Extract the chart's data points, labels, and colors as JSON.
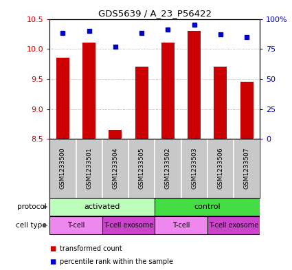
{
  "title": "GDS5639 / A_23_P56422",
  "samples": [
    "GSM1233500",
    "GSM1233501",
    "GSM1233504",
    "GSM1233505",
    "GSM1233502",
    "GSM1233503",
    "GSM1233506",
    "GSM1233507"
  ],
  "transformed_counts": [
    9.85,
    10.1,
    8.65,
    9.7,
    10.1,
    10.3,
    9.7,
    9.45
  ],
  "percentile_ranks": [
    88,
    90,
    77,
    88,
    91,
    95,
    87,
    85
  ],
  "ylim": [
    8.5,
    10.5
  ],
  "yticks": [
    8.5,
    9.0,
    9.5,
    10.0,
    10.5
  ],
  "right_yticks": [
    0,
    25,
    50,
    75,
    100
  ],
  "right_ylim": [
    0,
    100
  ],
  "bar_color": "#cc0000",
  "dot_color": "#0000cc",
  "bar_width": 0.5,
  "protocol_groups": [
    {
      "label": "activated",
      "start": 0,
      "end": 4,
      "color": "#bbffbb"
    },
    {
      "label": "control",
      "start": 4,
      "end": 8,
      "color": "#44dd44"
    }
  ],
  "cell_type_groups": [
    {
      "label": "T-cell",
      "start": 0,
      "end": 2,
      "color": "#ee88ee"
    },
    {
      "label": "T-cell exosome",
      "start": 2,
      "end": 4,
      "color": "#cc44cc"
    },
    {
      "label": "T-cell",
      "start": 4,
      "end": 6,
      "color": "#ee88ee"
    },
    {
      "label": "T-cell exosome",
      "start": 6,
      "end": 8,
      "color": "#cc44cc"
    }
  ],
  "legend_items": [
    {
      "label": "transformed count",
      "color": "#cc0000",
      "marker": "s"
    },
    {
      "label": "percentile rank within the sample",
      "color": "#0000cc",
      "marker": "s"
    }
  ],
  "tick_color_left": "#cc0000",
  "tick_color_right": "#0000cc",
  "background_color": "#ffffff",
  "sample_row_color": "#c8c8c8",
  "sample_divider_color": "#ffffff",
  "right_tick_labels": [
    "0",
    "25",
    "50",
    "75",
    "100%"
  ]
}
